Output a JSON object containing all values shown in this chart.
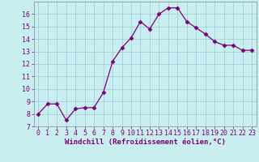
{
  "x": [
    0,
    1,
    2,
    3,
    4,
    5,
    6,
    7,
    8,
    9,
    10,
    11,
    12,
    13,
    14,
    15,
    16,
    17,
    18,
    19,
    20,
    21,
    22,
    23
  ],
  "y": [
    8.0,
    8.8,
    8.8,
    7.5,
    8.4,
    8.5,
    8.5,
    9.7,
    12.2,
    13.3,
    14.1,
    15.4,
    14.8,
    16.0,
    16.5,
    16.5,
    15.4,
    14.9,
    14.4,
    13.8,
    13.5,
    13.5,
    13.1,
    13.1
  ],
  "line_color": "#7b007b",
  "marker": "D",
  "marker_size": 2.5,
  "bg_color": "#c8eef0",
  "grid_color": "#a0c8d8",
  "xlabel": "Windchill (Refroidissement éolien,°C)",
  "xlabel_color": "#7b007b",
  "tick_color": "#7b007b",
  "ylim": [
    7,
    17
  ],
  "xlim": [
    -0.5,
    23.5
  ],
  "yticks": [
    7,
    8,
    9,
    10,
    11,
    12,
    13,
    14,
    15,
    16
  ],
  "xticks": [
    0,
    1,
    2,
    3,
    4,
    5,
    6,
    7,
    8,
    9,
    10,
    11,
    12,
    13,
    14,
    15,
    16,
    17,
    18,
    19,
    20,
    21,
    22,
    23
  ],
  "tick_fontsize": 6.0,
  "xlabel_fontsize": 6.5
}
